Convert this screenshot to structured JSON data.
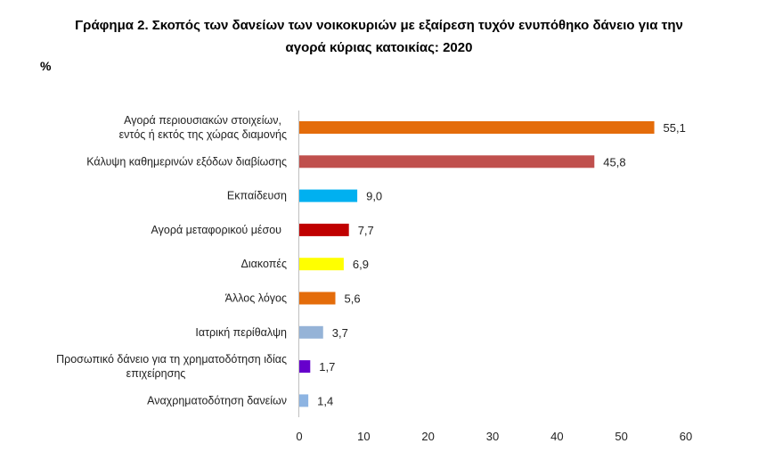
{
  "chart_data": {
    "type": "bar",
    "orientation": "horizontal",
    "title": "Γράφημα 2. Σκοπός των δανείων των νοικοκυριών με εξαίρεση τυχόν ενυπόθηκο δάνειο για την αγορά κύριας κατοικίας: 2020",
    "title_lines": [
      "Γράφημα 2. Σκοπός των δανείων των νοικοκυριών με εξαίρεση τυχόν ενυπόθηκο δάνειο για την",
      "αγορά κύριας κατοικίας: 2020"
    ],
    "unit_label": "%",
    "categories": [
      [
        "Αγορά περιουσιακών στοιχείων,",
        "εντός ή εκτός της χώρας διαμονής"
      ],
      [
        "Κάλυψη καθημερινών εξόδων διαβίωσης"
      ],
      [
        "Εκπαίδευση"
      ],
      [
        "Αγορά μεταφορικού μέσου"
      ],
      [
        "Διακοπές"
      ],
      [
        "Άλλος λόγος"
      ],
      [
        "Ιατρική περίθαλψη"
      ],
      [
        "Προσωπικό δάνειο για τη χρηματοδότηση ιδίας",
        "επιχείρησης"
      ],
      [
        "Αναχρηματοδότηση δανείων"
      ]
    ],
    "values": [
      55.1,
      45.8,
      9.0,
      7.7,
      6.9,
      5.6,
      3.7,
      1.7,
      1.4
    ],
    "value_labels": [
      "55,1",
      "45,8",
      "9,0",
      "7,7",
      "6,9",
      "5,6",
      "3,7",
      "1,7",
      "1,4"
    ],
    "colors": [
      "#E46C0A",
      "#C0504D",
      "#00B0F0",
      "#C00000",
      "#FFFF00",
      "#E46C0A",
      "#95B3D7",
      "#6600CC",
      "#8DB4E2"
    ],
    "xlim": [
      0,
      60
    ],
    "xticks": [
      "0",
      "10",
      "20",
      "30",
      "40",
      "50",
      "60"
    ],
    "grid": false,
    "legend": "none"
  }
}
